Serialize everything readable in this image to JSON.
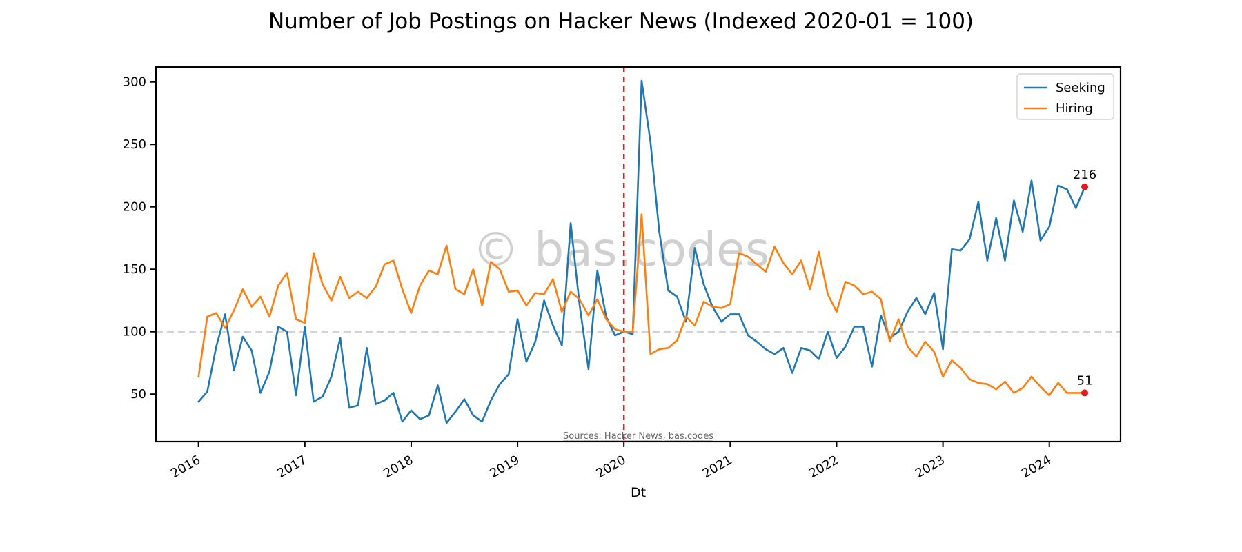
{
  "chart_data": {
    "type": "line",
    "title": "Number of Job Postings on Hacker News (Indexed 2020-01 = 100)",
    "xlabel": "Dt",
    "ylabel": "",
    "xlim": [
      2015.6,
      2024.67
    ],
    "ylim": [
      12,
      312
    ],
    "x_ticks": [
      2016,
      2017,
      2018,
      2019,
      2020,
      2021,
      2022,
      2023,
      2024
    ],
    "x_tick_labels": [
      "2016",
      "2017",
      "2018",
      "2019",
      "2020",
      "2021",
      "2022",
      "2023",
      "2024"
    ],
    "y_ticks": [
      50,
      100,
      150,
      200,
      250,
      300
    ],
    "y_tick_labels": [
      "50",
      "100",
      "150",
      "200",
      "250",
      "300"
    ],
    "reference_line": {
      "y": 100,
      "color": "#d3d3d3",
      "style": "dashed"
    },
    "event_line": {
      "x": 2020.0,
      "color": "#d62728",
      "style": "dashed"
    },
    "legend": {
      "position": "top-right"
    },
    "watermark": "© bas.codes",
    "source_note": "Sources: Hacker News, bas.codes",
    "end_labels": [
      {
        "series": "Seeking",
        "value": "216"
      },
      {
        "series": "Hiring",
        "value": "51"
      }
    ],
    "end_marker_color": "#e41a1c",
    "series": [
      {
        "name": "Seeking",
        "color": "#1f77b4",
        "points": [
          [
            2016.0,
            44
          ],
          [
            2016.083,
            52
          ],
          [
            2016.167,
            88
          ],
          [
            2016.25,
            114
          ],
          [
            2016.333,
            69
          ],
          [
            2016.417,
            96
          ],
          [
            2016.5,
            85
          ],
          [
            2016.583,
            51
          ],
          [
            2016.667,
            68
          ],
          [
            2016.75,
            104
          ],
          [
            2016.833,
            100
          ],
          [
            2016.917,
            49
          ],
          [
            2017.0,
            104
          ],
          [
            2017.083,
            44
          ],
          [
            2017.167,
            48
          ],
          [
            2017.25,
            64
          ],
          [
            2017.333,
            95
          ],
          [
            2017.417,
            39
          ],
          [
            2017.5,
            41
          ],
          [
            2017.583,
            87
          ],
          [
            2017.667,
            42
          ],
          [
            2017.75,
            45
          ],
          [
            2017.833,
            51
          ],
          [
            2017.917,
            28
          ],
          [
            2018.0,
            37
          ],
          [
            2018.083,
            30
          ],
          [
            2018.167,
            33
          ],
          [
            2018.25,
            57
          ],
          [
            2018.333,
            27
          ],
          [
            2018.417,
            36
          ],
          [
            2018.5,
            46
          ],
          [
            2018.583,
            33
          ],
          [
            2018.667,
            28
          ],
          [
            2018.75,
            45
          ],
          [
            2018.833,
            58
          ],
          [
            2018.917,
            66
          ],
          [
            2019.0,
            110
          ],
          [
            2019.083,
            76
          ],
          [
            2019.167,
            92
          ],
          [
            2019.25,
            125
          ],
          [
            2019.333,
            105
          ],
          [
            2019.417,
            89
          ],
          [
            2019.5,
            187
          ],
          [
            2019.583,
            122
          ],
          [
            2019.667,
            70
          ],
          [
            2019.75,
            149
          ],
          [
            2019.833,
            112
          ],
          [
            2019.917,
            97
          ],
          [
            2020.0,
            100
          ],
          [
            2020.083,
            98
          ],
          [
            2020.167,
            301
          ],
          [
            2020.25,
            252
          ],
          [
            2020.333,
            180
          ],
          [
            2020.417,
            133
          ],
          [
            2020.5,
            128
          ],
          [
            2020.583,
            108
          ],
          [
            2020.667,
            167
          ],
          [
            2020.75,
            138
          ],
          [
            2020.833,
            120
          ],
          [
            2020.917,
            108
          ],
          [
            2021.0,
            114
          ],
          [
            2021.083,
            114
          ],
          [
            2021.167,
            97
          ],
          [
            2021.25,
            92
          ],
          [
            2021.333,
            86
          ],
          [
            2021.417,
            82
          ],
          [
            2021.5,
            87
          ],
          [
            2021.583,
            67
          ],
          [
            2021.667,
            87
          ],
          [
            2021.75,
            85
          ],
          [
            2021.833,
            78
          ],
          [
            2021.917,
            100
          ],
          [
            2022.0,
            79
          ],
          [
            2022.083,
            88
          ],
          [
            2022.167,
            104
          ],
          [
            2022.25,
            104
          ],
          [
            2022.333,
            72
          ],
          [
            2022.417,
            113
          ],
          [
            2022.5,
            95
          ],
          [
            2022.583,
            100
          ],
          [
            2022.667,
            116
          ],
          [
            2022.75,
            127
          ],
          [
            2022.833,
            114
          ],
          [
            2022.917,
            131
          ],
          [
            2023.0,
            86
          ],
          [
            2023.083,
            166
          ],
          [
            2023.167,
            165
          ],
          [
            2023.25,
            174
          ],
          [
            2023.333,
            204
          ],
          [
            2023.417,
            157
          ],
          [
            2023.5,
            191
          ],
          [
            2023.583,
            157
          ],
          [
            2023.667,
            205
          ],
          [
            2023.75,
            180
          ],
          [
            2023.833,
            221
          ],
          [
            2023.917,
            173
          ],
          [
            2024.0,
            184
          ],
          [
            2024.083,
            217
          ],
          [
            2024.167,
            214
          ],
          [
            2024.25,
            199
          ],
          [
            2024.333,
            216
          ]
        ]
      },
      {
        "name": "Hiring",
        "color": "#ff7f0e",
        "points": [
          [
            2016.0,
            64
          ],
          [
            2016.083,
            112
          ],
          [
            2016.167,
            115
          ],
          [
            2016.25,
            103
          ],
          [
            2016.333,
            117
          ],
          [
            2016.417,
            134
          ],
          [
            2016.5,
            120
          ],
          [
            2016.583,
            128
          ],
          [
            2016.667,
            112
          ],
          [
            2016.75,
            137
          ],
          [
            2016.833,
            147
          ],
          [
            2016.917,
            110
          ],
          [
            2017.0,
            107
          ],
          [
            2017.083,
            163
          ],
          [
            2017.167,
            138
          ],
          [
            2017.25,
            125
          ],
          [
            2017.333,
            144
          ],
          [
            2017.417,
            127
          ],
          [
            2017.5,
            132
          ],
          [
            2017.583,
            127
          ],
          [
            2017.667,
            136
          ],
          [
            2017.75,
            154
          ],
          [
            2017.833,
            157
          ],
          [
            2017.917,
            134
          ],
          [
            2018.0,
            115
          ],
          [
            2018.083,
            137
          ],
          [
            2018.167,
            149
          ],
          [
            2018.25,
            146
          ],
          [
            2018.333,
            169
          ],
          [
            2018.417,
            134
          ],
          [
            2018.5,
            130
          ],
          [
            2018.583,
            150
          ],
          [
            2018.667,
            121
          ],
          [
            2018.75,
            156
          ],
          [
            2018.833,
            150
          ],
          [
            2018.917,
            132
          ],
          [
            2019.0,
            133
          ],
          [
            2019.083,
            121
          ],
          [
            2019.167,
            131
          ],
          [
            2019.25,
            130
          ],
          [
            2019.333,
            142
          ],
          [
            2019.417,
            116
          ],
          [
            2019.5,
            132
          ],
          [
            2019.583,
            126
          ],
          [
            2019.667,
            113
          ],
          [
            2019.75,
            126
          ],
          [
            2019.833,
            110
          ],
          [
            2019.917,
            102
          ],
          [
            2020.0,
            100
          ],
          [
            2020.083,
            100
          ],
          [
            2020.167,
            194
          ],
          [
            2020.25,
            82
          ],
          [
            2020.333,
            86
          ],
          [
            2020.417,
            87
          ],
          [
            2020.5,
            93
          ],
          [
            2020.583,
            112
          ],
          [
            2020.667,
            105
          ],
          [
            2020.75,
            124
          ],
          [
            2020.833,
            120
          ],
          [
            2020.917,
            119
          ],
          [
            2021.0,
            122
          ],
          [
            2021.083,
            163
          ],
          [
            2021.167,
            160
          ],
          [
            2021.25,
            154
          ],
          [
            2021.333,
            148
          ],
          [
            2021.417,
            168
          ],
          [
            2021.5,
            155
          ],
          [
            2021.583,
            146
          ],
          [
            2021.667,
            157
          ],
          [
            2021.75,
            134
          ],
          [
            2021.833,
            164
          ],
          [
            2021.917,
            130
          ],
          [
            2022.0,
            116
          ],
          [
            2022.083,
            140
          ],
          [
            2022.167,
            137
          ],
          [
            2022.25,
            130
          ],
          [
            2022.333,
            132
          ],
          [
            2022.417,
            126
          ],
          [
            2022.5,
            92
          ],
          [
            2022.583,
            110
          ],
          [
            2022.667,
            88
          ],
          [
            2022.75,
            80
          ],
          [
            2022.833,
            92
          ],
          [
            2022.917,
            84
          ],
          [
            2023.0,
            64
          ],
          [
            2023.083,
            77
          ],
          [
            2023.167,
            71
          ],
          [
            2023.25,
            62
          ],
          [
            2023.333,
            59
          ],
          [
            2023.417,
            58
          ],
          [
            2023.5,
            54
          ],
          [
            2023.583,
            60
          ],
          [
            2023.667,
            51
          ],
          [
            2023.75,
            55
          ],
          [
            2023.833,
            64
          ],
          [
            2023.917,
            56
          ],
          [
            2024.0,
            49
          ],
          [
            2024.083,
            59
          ],
          [
            2024.167,
            51
          ],
          [
            2024.25,
            51
          ],
          [
            2024.333,
            51
          ]
        ]
      }
    ]
  }
}
